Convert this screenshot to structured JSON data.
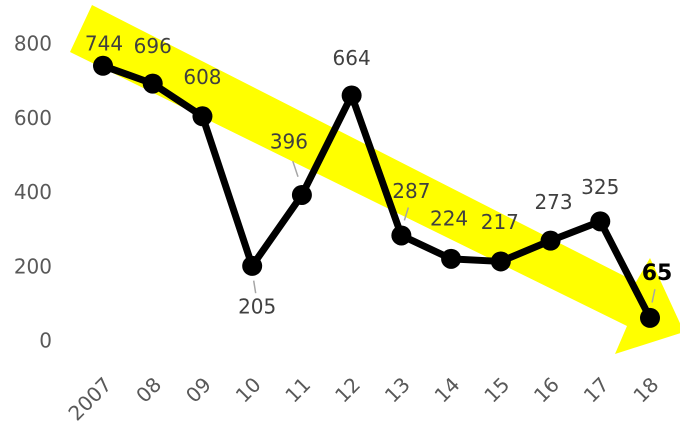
{
  "chart_data": {
    "type": "line",
    "categories": [
      "2007",
      "08",
      "09",
      "10",
      "11",
      "12",
      "13",
      "14",
      "15",
      "16",
      "17",
      "18"
    ],
    "values": [
      744,
      696,
      608,
      205,
      396,
      664,
      287,
      224,
      217,
      273,
      325,
      65
    ],
    "color": "#000000",
    "ylim": [
      0,
      800
    ],
    "yticks": [
      0,
      200,
      400,
      600,
      800
    ],
    "grid": false
  }
}
